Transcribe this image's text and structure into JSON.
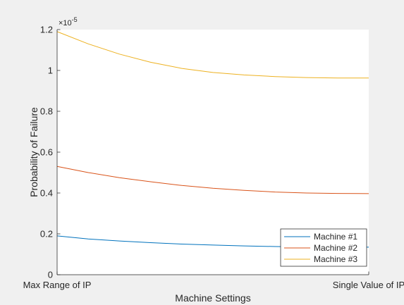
{
  "chart_data": {
    "type": "line",
    "title": "",
    "xlabel": "Machine Settings",
    "ylabel": "Probability of Failure",
    "x_tick_labels": [
      "Max Range of IP",
      "Single Value of IP"
    ],
    "y_exponent_label": "×10^-5",
    "y_exponent_base": "×10",
    "y_exponent_power": "-5",
    "ylim": [
      0,
      1.2
    ],
    "y_ticks": [
      "0",
      "0.2",
      "0.4",
      "0.6",
      "0.8",
      "1",
      "1.2"
    ],
    "y_tick_values": [
      0,
      0.2,
      0.4,
      0.6,
      0.8,
      1.0,
      1.2
    ],
    "x": [
      0,
      0.1,
      0.2,
      0.3,
      0.4,
      0.5,
      0.6,
      0.7,
      0.8,
      0.9,
      1.0
    ],
    "xlim": [
      0,
      1
    ],
    "grid": false,
    "legend_position": "bottom-right",
    "series": [
      {
        "name": "Machine #1",
        "color": "#0072bd",
        "values": [
          0.19,
          0.175,
          0.165,
          0.157,
          0.15,
          0.145,
          0.141,
          0.138,
          0.136,
          0.135,
          0.135
        ]
      },
      {
        "name": "Machine #2",
        "color": "#d95319",
        "values": [
          0.53,
          0.5,
          0.475,
          0.455,
          0.437,
          0.423,
          0.413,
          0.405,
          0.4,
          0.398,
          0.397
        ]
      },
      {
        "name": "Machine #3",
        "color": "#edb120",
        "values": [
          1.19,
          1.13,
          1.08,
          1.04,
          1.01,
          0.99,
          0.978,
          0.97,
          0.965,
          0.963,
          0.963
        ]
      }
    ]
  }
}
